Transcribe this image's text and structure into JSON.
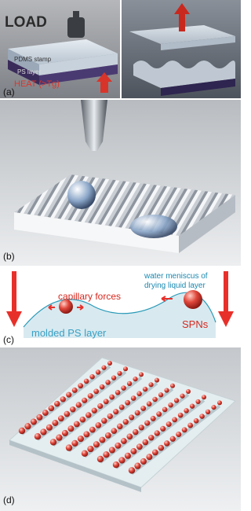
{
  "panel_a": {
    "label": "(a)",
    "load": "LOAD",
    "stamp": "PDMS stamp",
    "layer": "PS layer",
    "heat": "HEAT (>Tg)"
  },
  "panel_b": {
    "label": "(b)"
  },
  "panel_c": {
    "label": "(c)",
    "capillary": "capillary forces",
    "meniscus": [
      "water meniscus of",
      "drying liquid layer"
    ],
    "layer": "molded PS layer",
    "particles": "SPNs"
  },
  "panel_d": {
    "label": "(d)"
  }
}
